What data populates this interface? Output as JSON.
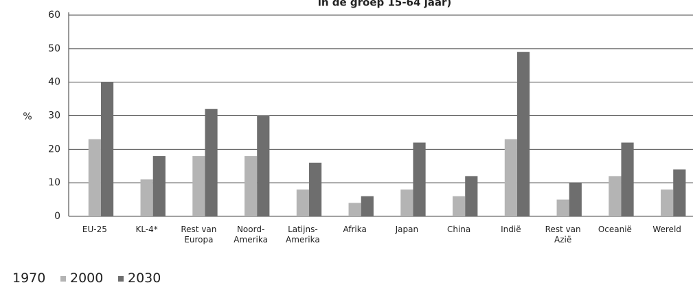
{
  "chart_data": {
    "type": "bar",
    "title": "in de groep 15-64 jaar)",
    "y_label": "%",
    "categories": [
      "EU-25",
      "KL-4*",
      "Rest van Europa",
      "Noord-Amerika",
      "Latijns-Amerika",
      "Afrika",
      "Japan",
      "China",
      "Indië",
      "Rest van Azië",
      "Oceanië",
      "Wereld"
    ],
    "series": [
      {
        "name": "1970",
        "color": "#f2f2f2",
        "values": [
          null,
          null,
          null,
          null,
          null,
          null,
          null,
          null,
          null,
          null,
          null,
          null
        ]
      },
      {
        "name": "2000",
        "color": "#b4b4b4",
        "values": [
          23,
          11,
          18,
          18,
          8,
          4,
          8,
          6,
          23,
          5,
          12,
          8
        ]
      },
      {
        "name": "2030",
        "color": "#6e6e6e",
        "values": [
          40,
          18,
          32,
          30,
          16,
          6,
          22,
          12,
          49,
          10,
          22,
          14
        ]
      }
    ],
    "ylim": [
      0,
      60
    ],
    "yticks": [
      0,
      10,
      20,
      30,
      40,
      50,
      60
    ],
    "grid": true
  }
}
